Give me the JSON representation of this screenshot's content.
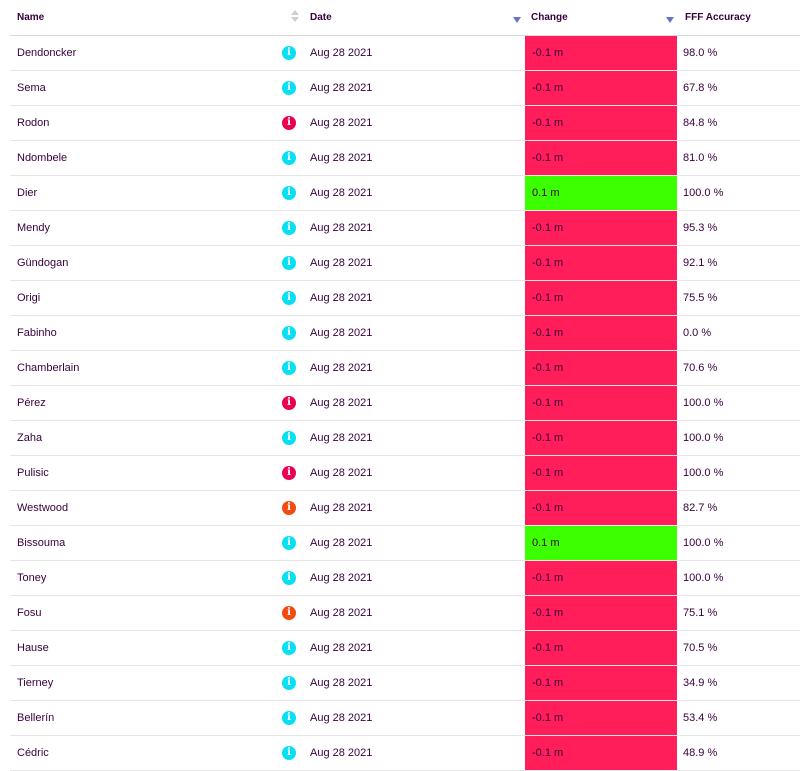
{
  "header": {
    "name": "Name",
    "date": "Date",
    "change": "Change",
    "accuracy": "FFF Accuracy"
  },
  "colors": {
    "negative": "#ff1e5a",
    "positive": "#3cff00",
    "info_cyan": "#07e0f2",
    "info_red": "#e90052",
    "info_orange": "#f24b0f"
  },
  "rows": [
    {
      "name": "Dendoncker",
      "icon": "info-cyan",
      "date": "Aug 28 2021",
      "change": "-0.1 m",
      "trend": "negative",
      "accuracy": "98.0 %"
    },
    {
      "name": "Sema",
      "icon": "info-cyan",
      "date": "Aug 28 2021",
      "change": "-0.1 m",
      "trend": "negative",
      "accuracy": "67.8 %"
    },
    {
      "name": "Rodon",
      "icon": "info-red",
      "date": "Aug 28 2021",
      "change": "-0.1 m",
      "trend": "negative",
      "accuracy": "84.8 %"
    },
    {
      "name": "Ndombele",
      "icon": "info-cyan",
      "date": "Aug 28 2021",
      "change": "-0.1 m",
      "trend": "negative",
      "accuracy": "81.0 %"
    },
    {
      "name": "Dier",
      "icon": "info-cyan",
      "date": "Aug 28 2021",
      "change": "0.1 m",
      "trend": "positive",
      "accuracy": "100.0 %"
    },
    {
      "name": "Mendy",
      "icon": "info-cyan",
      "date": "Aug 28 2021",
      "change": "-0.1 m",
      "trend": "negative",
      "accuracy": "95.3 %"
    },
    {
      "name": "Gündogan",
      "icon": "info-cyan",
      "date": "Aug 28 2021",
      "change": "-0.1 m",
      "trend": "negative",
      "accuracy": "92.1 %"
    },
    {
      "name": "Origi",
      "icon": "info-cyan",
      "date": "Aug 28 2021",
      "change": "-0.1 m",
      "trend": "negative",
      "accuracy": "75.5 %"
    },
    {
      "name": "Fabinho",
      "icon": "info-cyan",
      "date": "Aug 28 2021",
      "change": "-0.1 m",
      "trend": "negative",
      "accuracy": "0.0 %"
    },
    {
      "name": "Chamberlain",
      "icon": "info-cyan",
      "date": "Aug 28 2021",
      "change": "-0.1 m",
      "trend": "negative",
      "accuracy": "70.6 %"
    },
    {
      "name": "Pérez",
      "icon": "info-red",
      "date": "Aug 28 2021",
      "change": "-0.1 m",
      "trend": "negative",
      "accuracy": "100.0 %"
    },
    {
      "name": "Zaha",
      "icon": "info-cyan",
      "date": "Aug 28 2021",
      "change": "-0.1 m",
      "trend": "negative",
      "accuracy": "100.0 %"
    },
    {
      "name": "Pulisic",
      "icon": "info-red",
      "date": "Aug 28 2021",
      "change": "-0.1 m",
      "trend": "negative",
      "accuracy": "100.0 %"
    },
    {
      "name": "Westwood",
      "icon": "info-orange",
      "date": "Aug 28 2021",
      "change": "-0.1 m",
      "trend": "negative",
      "accuracy": "82.7 %"
    },
    {
      "name": "Bissouma",
      "icon": "info-cyan",
      "date": "Aug 28 2021",
      "change": "0.1 m",
      "trend": "positive",
      "accuracy": "100.0 %"
    },
    {
      "name": "Toney",
      "icon": "info-cyan",
      "date": "Aug 28 2021",
      "change": "-0.1 m",
      "trend": "negative",
      "accuracy": "100.0 %"
    },
    {
      "name": "Fosu",
      "icon": "info-orange",
      "date": "Aug 28 2021",
      "change": "-0.1 m",
      "trend": "negative",
      "accuracy": "75.1 %"
    },
    {
      "name": "Hause",
      "icon": "info-cyan",
      "date": "Aug 28 2021",
      "change": "-0.1 m",
      "trend": "negative",
      "accuracy": "70.5 %"
    },
    {
      "name": "Tierney",
      "icon": "info-cyan",
      "date": "Aug 28 2021",
      "change": "-0.1 m",
      "trend": "negative",
      "accuracy": "34.9 %"
    },
    {
      "name": "Bellerín",
      "icon": "info-cyan",
      "date": "Aug 28 2021",
      "change": "-0.1 m",
      "trend": "negative",
      "accuracy": "53.4 %"
    },
    {
      "name": "Cédric",
      "icon": "info-cyan",
      "date": "Aug 28 2021",
      "change": "-0.1 m",
      "trend": "negative",
      "accuracy": "48.9 %"
    }
  ]
}
